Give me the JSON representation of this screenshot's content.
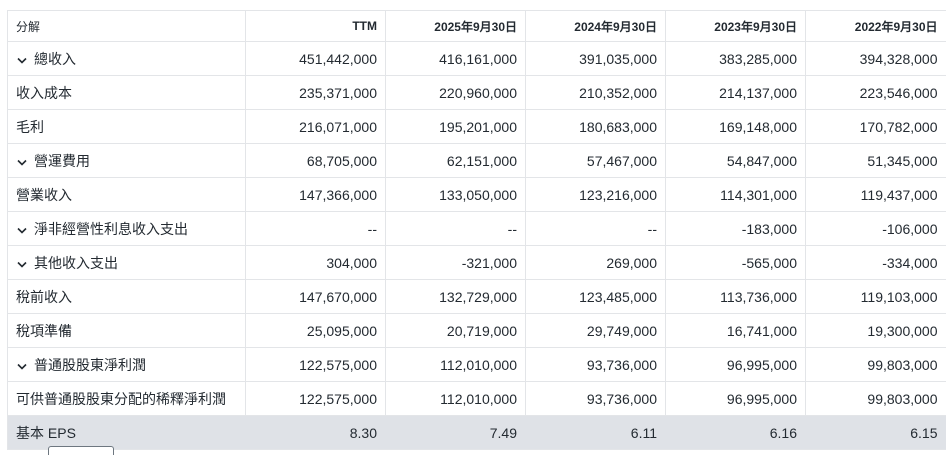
{
  "table": {
    "columns": [
      "分解",
      "TTM",
      "2025年9月30日",
      "2024年9月30日",
      "2023年9月30日",
      "2022年9月30日"
    ],
    "expand_icon": "chevron-down-icon",
    "highlight_color": "#dfe2e7",
    "rows": [
      {
        "label": "總收入",
        "expandable": true,
        "values": [
          "451,442,000",
          "416,161,000",
          "391,035,000",
          "383,285,000",
          "394,328,000"
        ]
      },
      {
        "label": "收入成本",
        "expandable": false,
        "values": [
          "235,371,000",
          "220,960,000",
          "210,352,000",
          "214,137,000",
          "223,546,000"
        ]
      },
      {
        "label": "毛利",
        "expandable": false,
        "values": [
          "216,071,000",
          "195,201,000",
          "180,683,000",
          "169,148,000",
          "170,782,000"
        ]
      },
      {
        "label": "營運費用",
        "expandable": true,
        "values": [
          "68,705,000",
          "62,151,000",
          "57,467,000",
          "54,847,000",
          "51,345,000"
        ]
      },
      {
        "label": "營業收入",
        "expandable": false,
        "values": [
          "147,366,000",
          "133,050,000",
          "123,216,000",
          "114,301,000",
          "119,437,000"
        ]
      },
      {
        "label": "淨非經營性利息收入支出",
        "expandable": true,
        "values": [
          "--",
          "--",
          "--",
          "-183,000",
          "-106,000"
        ]
      },
      {
        "label": "其他收入支出",
        "expandable": true,
        "values": [
          "304,000",
          "-321,000",
          "269,000",
          "-565,000",
          "-334,000"
        ]
      },
      {
        "label": "稅前收入",
        "expandable": false,
        "values": [
          "147,670,000",
          "132,729,000",
          "123,485,000",
          "113,736,000",
          "119,103,000"
        ]
      },
      {
        "label": "稅項準備",
        "expandable": false,
        "values": [
          "25,095,000",
          "20,719,000",
          "29,749,000",
          "16,741,000",
          "19,300,000"
        ]
      },
      {
        "label": "普通股股東淨利潤",
        "expandable": true,
        "values": [
          "122,575,000",
          "112,010,000",
          "93,736,000",
          "96,995,000",
          "99,803,000"
        ]
      },
      {
        "label": "可供普通股股東分配的稀釋淨利潤",
        "expandable": false,
        "values": [
          "122,575,000",
          "112,010,000",
          "93,736,000",
          "96,995,000",
          "99,803,000"
        ]
      },
      {
        "label": "基本 EPS",
        "expandable": false,
        "highlight": true,
        "values": [
          "8.30",
          "7.49",
          "6.11",
          "6.16",
          "6.15"
        ]
      }
    ]
  }
}
